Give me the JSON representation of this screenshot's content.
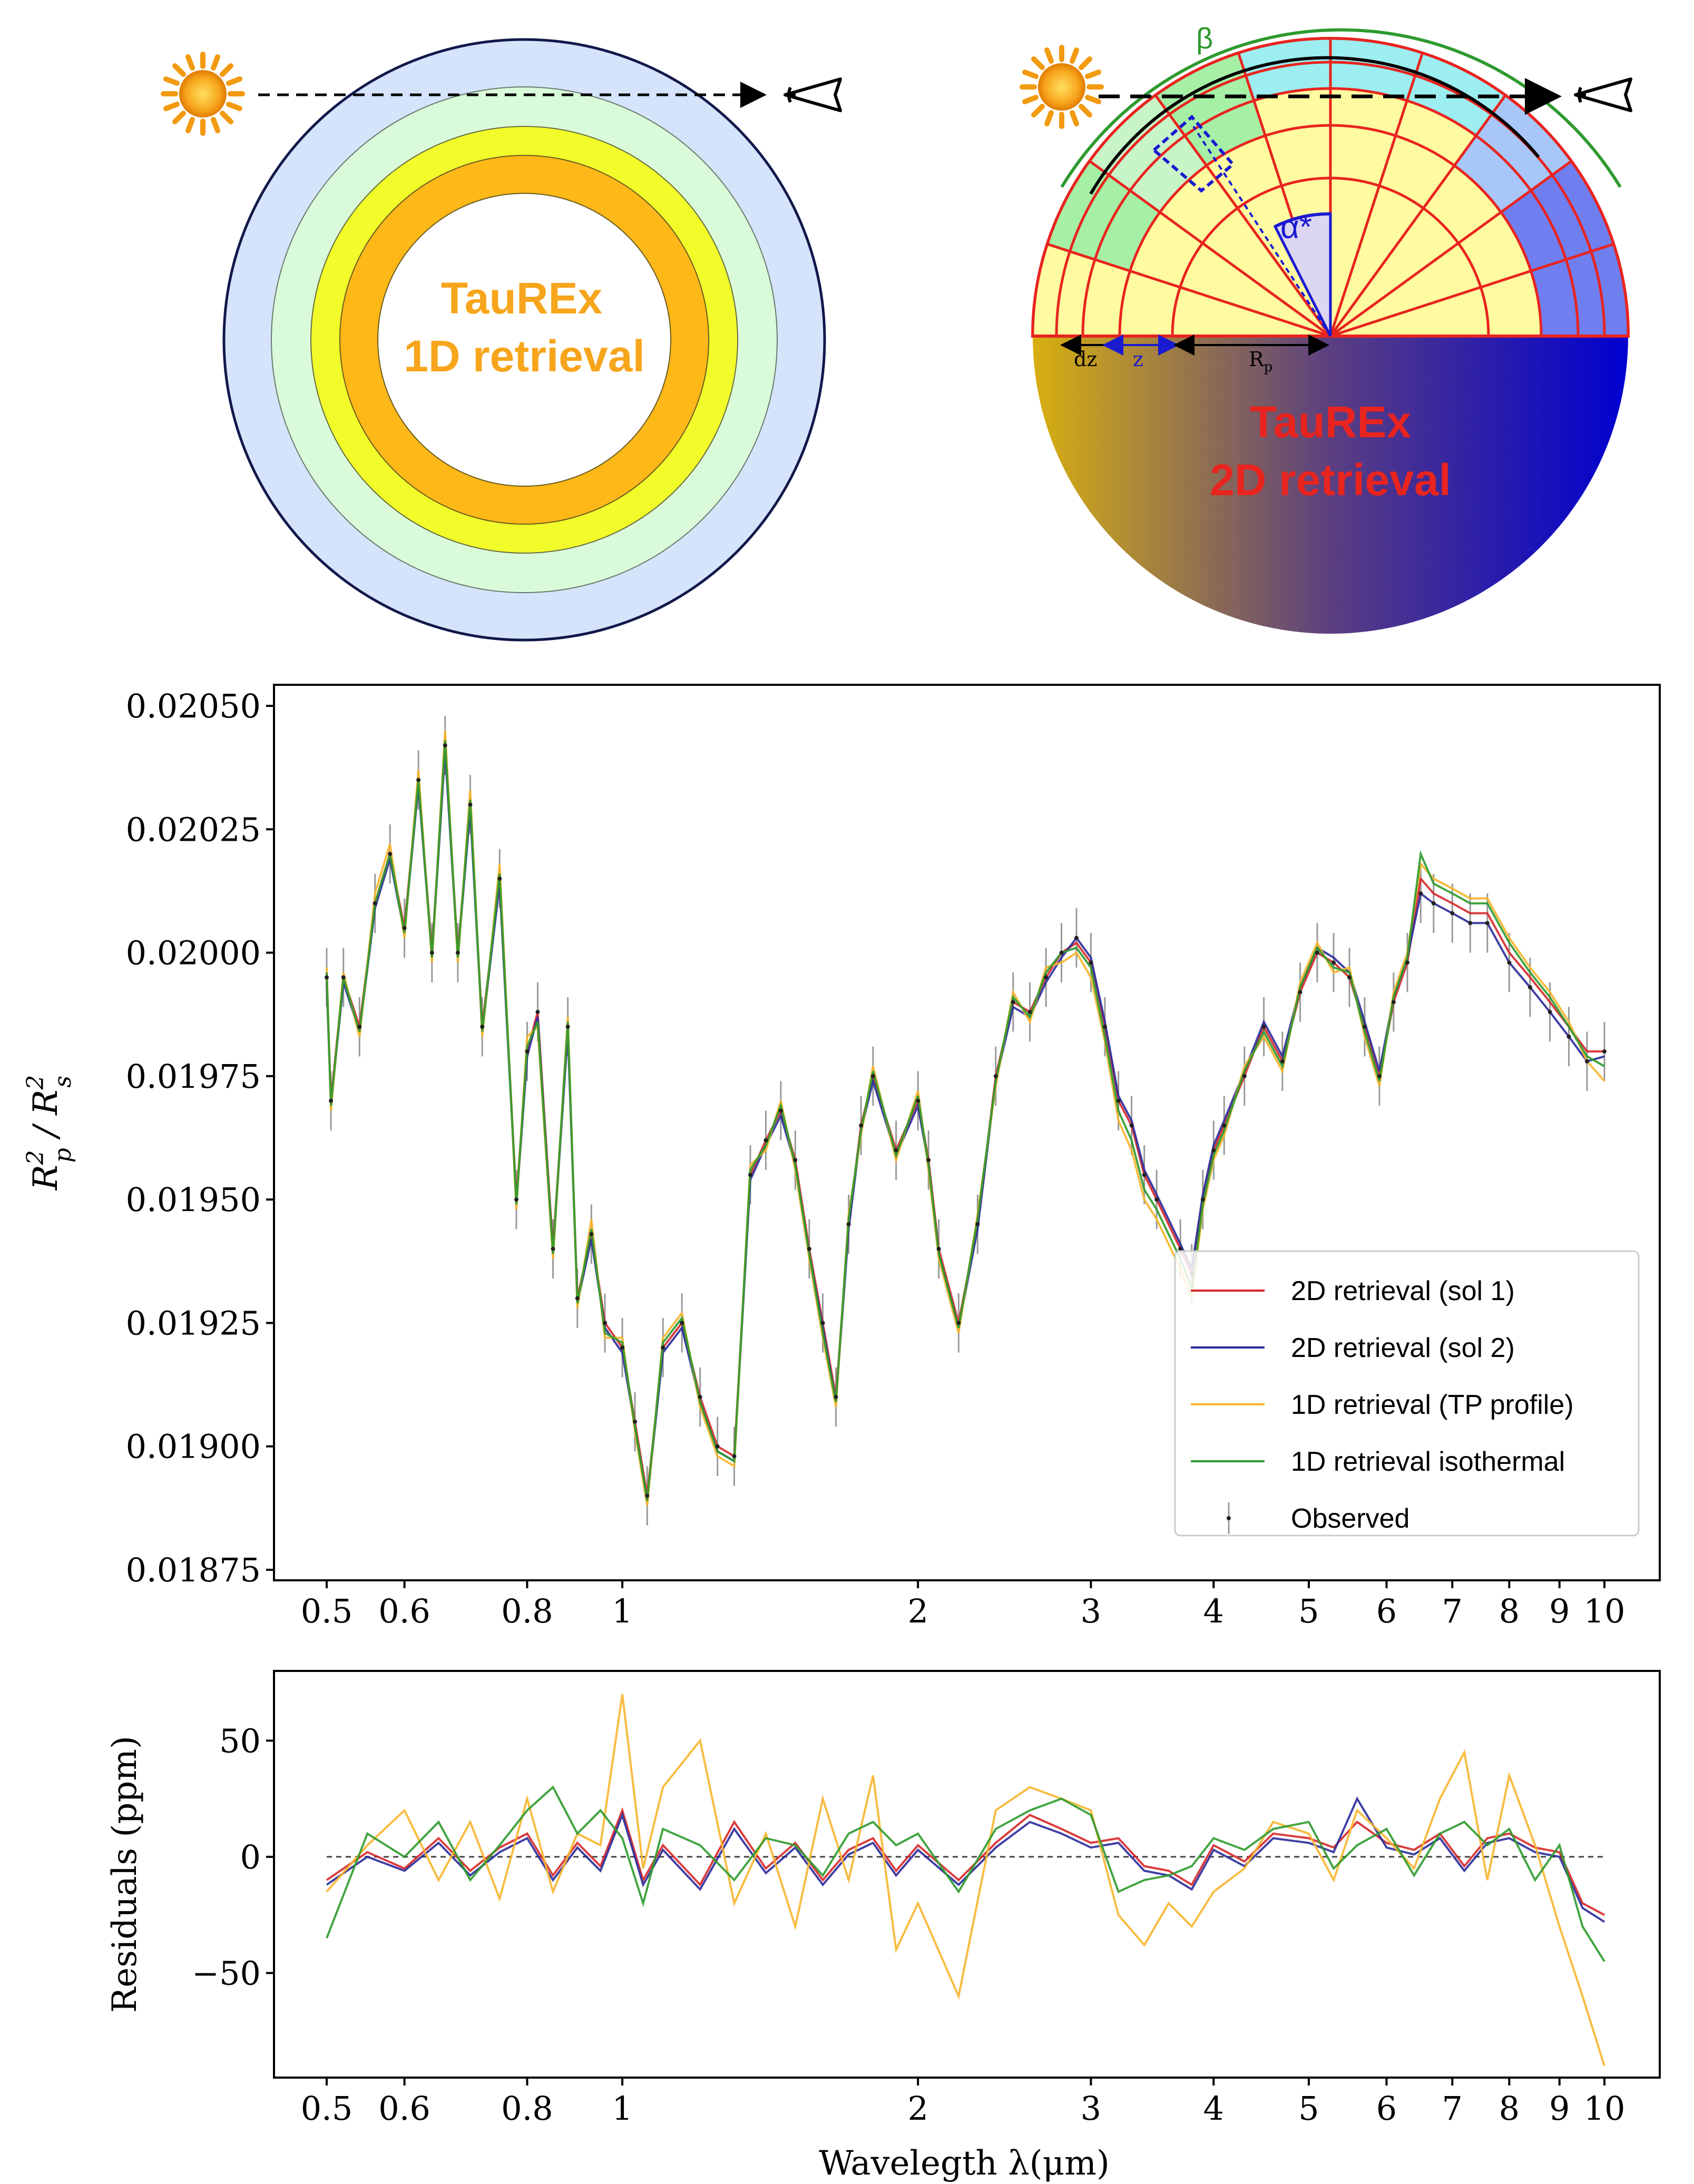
{
  "diagrams": {
    "left": {
      "label_line1": "TauREx",
      "label_line2": "1D retrieval",
      "ring_colors": [
        "#d5e3fb",
        "#d9fbd9",
        "#f2fc2a",
        "#feb817"
      ],
      "label_color": "#f7a51c"
    },
    "right": {
      "label_line1": "TauREx",
      "label_line2": "2D retrieval",
      "label_color": "#e8241f",
      "beta": "β",
      "alpha": "α*",
      "dz": "dz",
      "z": "z",
      "rp": "R",
      "rp_sub": "p",
      "gradient_colors": [
        "#d8b010",
        "#5b3f80",
        "#0000d0"
      ]
    }
  },
  "chart_data": [
    {
      "type": "line",
      "ylabel": "R_p^2 / R_s^2",
      "xscale": "log",
      "xlim": [
        0.5,
        10
      ],
      "ylim": [
        0.01875,
        0.0205
      ],
      "yticks": [
        "0.02050",
        "0.02025",
        "0.02000",
        "0.01975",
        "0.01950",
        "0.01925",
        "0.01900",
        "0.01875"
      ],
      "ytick_values": [
        0.0205,
        0.02025,
        0.02,
        0.01975,
        0.0195,
        0.01925,
        0.019,
        0.01875
      ],
      "xticks": [
        "0.5",
        "0.6",
        "0.8",
        "1",
        "2",
        "3",
        "4",
        "5",
        "6",
        "7",
        "8",
        "9",
        "10"
      ],
      "xtick_values": [
        0.5,
        0.6,
        0.8,
        1,
        2,
        3,
        4,
        5,
        6,
        7,
        8,
        9,
        10
      ],
      "legend_position": "lower-right",
      "legend": [
        {
          "label": "2D retrieval (sol 1)",
          "color": "#d62728",
          "kind": "line"
        },
        {
          "label": "2D retrieval (sol 2)",
          "color": "#2a2a9a",
          "kind": "line"
        },
        {
          "label": "1D retrieval (TP profile)",
          "color": "#f7b52c",
          "kind": "line"
        },
        {
          "label": "1D retrieval isothermal",
          "color": "#2e9a2e",
          "kind": "line"
        },
        {
          "label": "Observed",
          "color": "#333333",
          "kind": "errorbar"
        }
      ],
      "x": [
        0.5,
        0.505,
        0.52,
        0.54,
        0.56,
        0.58,
        0.6,
        0.62,
        0.64,
        0.66,
        0.68,
        0.7,
        0.72,
        0.75,
        0.78,
        0.8,
        0.82,
        0.85,
        0.88,
        0.9,
        0.93,
        0.96,
        1.0,
        1.03,
        1.06,
        1.1,
        1.15,
        1.2,
        1.25,
        1.3,
        1.35,
        1.4,
        1.45,
        1.5,
        1.55,
        1.6,
        1.65,
        1.7,
        1.75,
        1.8,
        1.9,
        2.0,
        2.05,
        2.1,
        2.2,
        2.3,
        2.4,
        2.5,
        2.6,
        2.7,
        2.8,
        2.9,
        3.0,
        3.1,
        3.2,
        3.3,
        3.4,
        3.5,
        3.7,
        3.8,
        3.9,
        4.0,
        4.1,
        4.3,
        4.5,
        4.7,
        4.9,
        5.1,
        5.3,
        5.5,
        5.7,
        5.9,
        6.1,
        6.3,
        6.5,
        6.7,
        7.0,
        7.3,
        7.6,
        8.0,
        8.4,
        8.8,
        9.2,
        9.6,
        10.0
      ],
      "series": [
        {
          "name": "2D retrieval (sol 1)",
          "values": [
            0.01995,
            0.0197,
            0.01995,
            0.01985,
            0.0201,
            0.0202,
            0.02005,
            0.02035,
            0.02,
            0.02042,
            0.02,
            0.0203,
            0.01985,
            0.02015,
            0.0195,
            0.0198,
            0.01988,
            0.0194,
            0.01985,
            0.0193,
            0.01943,
            0.01925,
            0.0192,
            0.01905,
            0.0189,
            0.0192,
            0.01925,
            0.0191,
            0.019,
            0.01898,
            0.01955,
            0.01962,
            0.01968,
            0.01958,
            0.0194,
            0.01925,
            0.0191,
            0.01945,
            0.01965,
            0.01975,
            0.0196,
            0.0197,
            0.01958,
            0.0194,
            0.01925,
            0.01945,
            0.01975,
            0.0199,
            0.01988,
            0.01995,
            0.02,
            0.02002,
            0.01998,
            0.01985,
            0.0197,
            0.01965,
            0.01955,
            0.0195,
            0.0194,
            0.01935,
            0.0195,
            0.0196,
            0.01965,
            0.01975,
            0.01985,
            0.01978,
            0.01992,
            0.02,
            0.01998,
            0.01995,
            0.01985,
            0.01975,
            0.0199,
            0.01998,
            0.02015,
            0.02012,
            0.0201,
            0.02008,
            0.02008,
            0.02,
            0.01995,
            0.0199,
            0.01985,
            0.0198,
            0.0198
          ]
        },
        {
          "name": "2D retrieval (sol 2)",
          "values": [
            0.01994,
            0.01969,
            0.01994,
            0.01984,
            0.02009,
            0.02019,
            0.02004,
            0.02034,
            0.01999,
            0.02041,
            0.01999,
            0.02029,
            0.01984,
            0.02014,
            0.01949,
            0.01979,
            0.01987,
            0.01939,
            0.01984,
            0.01929,
            0.01942,
            0.01924,
            0.01919,
            0.01904,
            0.01889,
            0.01919,
            0.01924,
            0.01909,
            0.01899,
            0.01897,
            0.01954,
            0.01961,
            0.01967,
            0.01957,
            0.01939,
            0.01924,
            0.01909,
            0.01944,
            0.01964,
            0.01974,
            0.01959,
            0.01969,
            0.01957,
            0.01939,
            0.01924,
            0.01944,
            0.01974,
            0.01989,
            0.01987,
            0.01994,
            0.01999,
            0.02003,
            0.01999,
            0.01986,
            0.01971,
            0.01966,
            0.01956,
            0.01951,
            0.01941,
            0.01936,
            0.01951,
            0.01961,
            0.01966,
            0.01976,
            0.01986,
            0.01979,
            0.01993,
            0.02001,
            0.01999,
            0.01996,
            0.01986,
            0.01976,
            0.01991,
            0.01999,
            0.02012,
            0.0201,
            0.02008,
            0.02006,
            0.02006,
            0.01998,
            0.01993,
            0.01988,
            0.01983,
            0.01978,
            0.01979
          ]
        },
        {
          "name": "1D retrieval (TP profile)",
          "values": [
            0.01997,
            0.01968,
            0.01996,
            0.01983,
            0.02012,
            0.02022,
            0.02003,
            0.02037,
            0.01998,
            0.02045,
            0.01998,
            0.02033,
            0.01983,
            0.02018,
            0.01948,
            0.01983,
            0.01985,
            0.01938,
            0.01987,
            0.01928,
            0.01946,
            0.01922,
            0.01922,
            0.01903,
            0.01888,
            0.01922,
            0.01927,
            0.01908,
            0.01898,
            0.01896,
            0.01957,
            0.0196,
            0.0197,
            0.01956,
            0.01938,
            0.01922,
            0.01908,
            0.01947,
            0.01963,
            0.01977,
            0.01958,
            0.01972,
            0.01956,
            0.01938,
            0.01923,
            0.01947,
            0.01973,
            0.01992,
            0.01986,
            0.01997,
            0.01998,
            0.02,
            0.01995,
            0.01982,
            0.01966,
            0.0196,
            0.0195,
            0.01946,
            0.01936,
            0.0193,
            0.01948,
            0.01958,
            0.01963,
            0.01977,
            0.01983,
            0.01976,
            0.01994,
            0.02002,
            0.01996,
            0.01997,
            0.01983,
            0.01973,
            0.01992,
            0.02,
            0.02018,
            0.02015,
            0.02013,
            0.02011,
            0.02011,
            0.02003,
            0.01997,
            0.01992,
            0.01986,
            0.01978,
            0.01974
          ]
        },
        {
          "name": "1D retrieval isothermal",
          "values": [
            0.01996,
            0.01969,
            0.01995,
            0.01984,
            0.0201,
            0.0202,
            0.02004,
            0.02035,
            0.01999,
            0.02043,
            0.01999,
            0.02031,
            0.01984,
            0.02016,
            0.01949,
            0.01981,
            0.01986,
            0.01939,
            0.01986,
            0.01929,
            0.01944,
            0.01923,
            0.01921,
            0.01904,
            0.01889,
            0.01921,
            0.01926,
            0.01909,
            0.01899,
            0.01897,
            0.01956,
            0.01961,
            0.01969,
            0.01957,
            0.01939,
            0.01923,
            0.01909,
            0.01946,
            0.01964,
            0.01976,
            0.01959,
            0.01971,
            0.01957,
            0.01939,
            0.01924,
            0.01946,
            0.01974,
            0.01991,
            0.01987,
            0.01996,
            0.02,
            0.02001,
            0.01997,
            0.01983,
            0.01968,
            0.01962,
            0.01952,
            0.01948,
            0.01938,
            0.01932,
            0.01949,
            0.01959,
            0.01964,
            0.01976,
            0.01984,
            0.01977,
            0.01993,
            0.02001,
            0.01997,
            0.01996,
            0.01984,
            0.01974,
            0.01991,
            0.01999,
            0.0202,
            0.02014,
            0.02012,
            0.0201,
            0.0201,
            0.02002,
            0.01996,
            0.01991,
            0.01985,
            0.01979,
            0.01977
          ]
        },
        {
          "name": "Observed",
          "values": [
            0.01995,
            0.0197,
            0.01995,
            0.01985,
            0.0201,
            0.0202,
            0.02005,
            0.02035,
            0.02,
            0.02042,
            0.02,
            0.0203,
            0.01985,
            0.02015,
            0.0195,
            0.0198,
            0.01988,
            0.0194,
            0.01985,
            0.0193,
            0.01943,
            0.01925,
            0.0192,
            0.01905,
            0.0189,
            0.0192,
            0.01925,
            0.0191,
            0.019,
            0.01898,
            0.01955,
            0.01962,
            0.01968,
            0.01958,
            0.0194,
            0.01925,
            0.0191,
            0.01945,
            0.01965,
            0.01975,
            0.0196,
            0.0197,
            0.01958,
            0.0194,
            0.01925,
            0.01945,
            0.01975,
            0.0199,
            0.01988,
            0.01995,
            0.02,
            0.02003,
            0.01998,
            0.01985,
            0.0197,
            0.01965,
            0.01955,
            0.0195,
            0.0194,
            0.01935,
            0.0195,
            0.0196,
            0.01965,
            0.01975,
            0.01985,
            0.01978,
            0.01992,
            0.02,
            0.01998,
            0.01995,
            0.01985,
            0.01975,
            0.0199,
            0.01998,
            0.02012,
            0.0201,
            0.02008,
            0.02006,
            0.02006,
            0.01998,
            0.01993,
            0.01988,
            0.01983,
            0.01978,
            0.0198
          ],
          "error": 6e-05
        }
      ]
    },
    {
      "type": "line",
      "ylabel": "Residuals (ppm)",
      "xlabel": "Wavelegth λ(μm)",
      "xscale": "log",
      "xlim": [
        0.5,
        10
      ],
      "ylim": [
        -95,
        80
      ],
      "yticks": [
        "50",
        "0",
        "−50"
      ],
      "ytick_values": [
        50,
        0,
        -50
      ],
      "xticks": [
        "0.5",
        "0.6",
        "0.8",
        "1",
        "2",
        "3",
        "4",
        "5",
        "6",
        "7",
        "8",
        "9",
        "10"
      ],
      "xtick_values": [
        0.5,
        0.6,
        0.8,
        1,
        2,
        3,
        4,
        5,
        6,
        7,
        8,
        9,
        10
      ],
      "zero_line": true,
      "x": [
        0.5,
        0.55,
        0.6,
        0.65,
        0.7,
        0.75,
        0.8,
        0.85,
        0.9,
        0.95,
        1.0,
        1.05,
        1.1,
        1.2,
        1.3,
        1.4,
        1.5,
        1.6,
        1.7,
        1.8,
        1.9,
        2.0,
        2.2,
        2.4,
        2.6,
        2.8,
        3.0,
        3.2,
        3.4,
        3.6,
        3.8,
        4.0,
        4.3,
        4.6,
        5.0,
        5.3,
        5.6,
        6.0,
        6.4,
        6.8,
        7.2,
        7.6,
        8.0,
        8.5,
        9.0,
        9.5,
        10.0
      ],
      "series": [
        {
          "name": "2D retrieval (sol 1)",
          "values": [
            -10,
            2,
            -5,
            8,
            -6,
            4,
            10,
            -8,
            6,
            -4,
            20,
            -10,
            5,
            -12,
            15,
            -5,
            6,
            -10,
            3,
            8,
            -6,
            5,
            -10,
            6,
            18,
            12,
            6,
            8,
            -4,
            -6,
            -12,
            5,
            -2,
            10,
            8,
            4,
            15,
            6,
            3,
            10,
            -4,
            8,
            10,
            4,
            2,
            -20,
            -25
          ]
        },
        {
          "name": "2D retrieval (sol 2)",
          "values": [
            -12,
            0,
            -6,
            6,
            -8,
            2,
            8,
            -10,
            4,
            -6,
            18,
            -12,
            3,
            -14,
            12,
            -7,
            4,
            -12,
            1,
            6,
            -8,
            3,
            -12,
            4,
            15,
            10,
            4,
            6,
            -6,
            -8,
            -14,
            3,
            -4,
            8,
            6,
            2,
            25,
            4,
            1,
            8,
            -6,
            6,
            8,
            2,
            0,
            -22,
            -28
          ]
        },
        {
          "name": "1D retrieval (TP profile)",
          "values": [
            -15,
            5,
            20,
            -10,
            15,
            -18,
            25,
            -15,
            10,
            5,
            70,
            -5,
            30,
            50,
            -20,
            10,
            -30,
            25,
            -10,
            35,
            -40,
            -20,
            -60,
            20,
            30,
            25,
            20,
            -25,
            -38,
            -20,
            -30,
            -15,
            -5,
            15,
            10,
            -10,
            20,
            8,
            -5,
            25,
            45,
            -10,
            35,
            5,
            -30,
            -60,
            -90
          ]
        },
        {
          "name": "1D retrieval isothermal",
          "values": [
            -35,
            10,
            0,
            15,
            -10,
            5,
            20,
            30,
            10,
            20,
            8,
            -20,
            12,
            5,
            -10,
            8,
            5,
            -8,
            10,
            15,
            5,
            10,
            -15,
            12,
            20,
            25,
            18,
            -15,
            -10,
            -8,
            -4,
            8,
            3,
            12,
            15,
            -5,
            5,
            12,
            -8,
            10,
            15,
            5,
            12,
            -10,
            5,
            -30,
            -45
          ]
        }
      ]
    }
  ]
}
